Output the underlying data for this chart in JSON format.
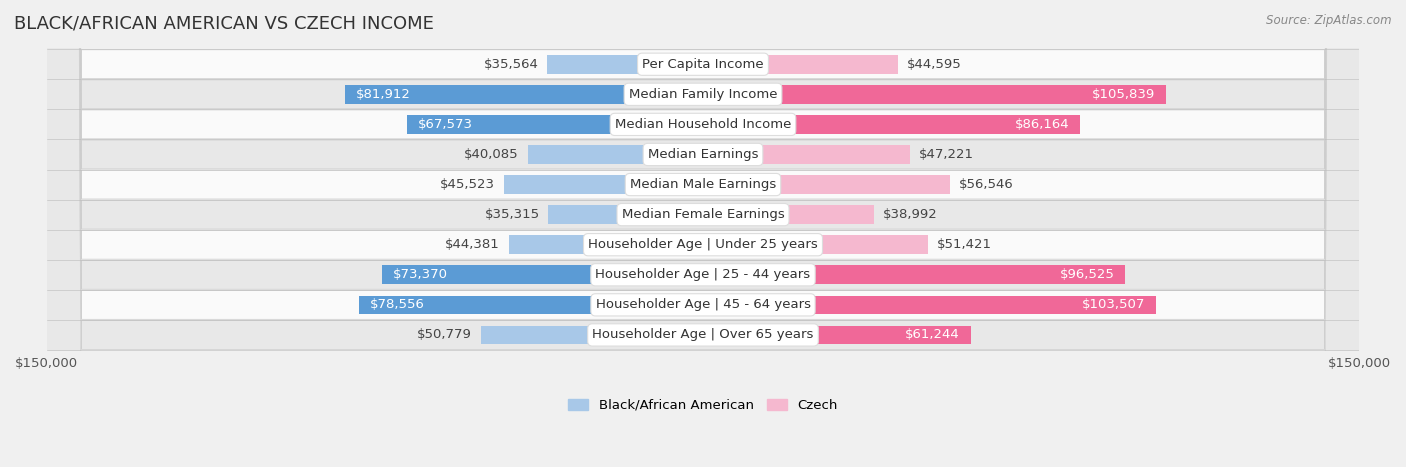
{
  "title": "BLACK/AFRICAN AMERICAN VS CZECH INCOME",
  "source": "Source: ZipAtlas.com",
  "categories": [
    "Per Capita Income",
    "Median Family Income",
    "Median Household Income",
    "Median Earnings",
    "Median Male Earnings",
    "Median Female Earnings",
    "Householder Age | Under 25 years",
    "Householder Age | 25 - 44 years",
    "Householder Age | 45 - 64 years",
    "Householder Age | Over 65 years"
  ],
  "left_values": [
    35564,
    81912,
    67573,
    40085,
    45523,
    35315,
    44381,
    73370,
    78556,
    50779
  ],
  "right_values": [
    44595,
    105839,
    86164,
    47221,
    56546,
    38992,
    51421,
    96525,
    103507,
    61244
  ],
  "left_labels": [
    "$35,564",
    "$81,912",
    "$67,573",
    "$40,085",
    "$45,523",
    "$35,315",
    "$44,381",
    "$73,370",
    "$78,556",
    "$50,779"
  ],
  "right_labels": [
    "$44,595",
    "$105,839",
    "$86,164",
    "$47,221",
    "$56,546",
    "$38,992",
    "$51,421",
    "$96,525",
    "$103,507",
    "$61,244"
  ],
  "left_color_light": "#a8c8e8",
  "left_color_dark": "#5b9bd5",
  "right_color_light": "#f5b8cf",
  "right_color_dark": "#f06898",
  "max_value": 150000,
  "legend_left": "Black/African American",
  "legend_right": "Czech",
  "bar_height": 0.62,
  "bg_color": "#f0f0f0",
  "row_bg_light": "#fafafa",
  "row_bg_dark": "#e8e8e8",
  "title_fontsize": 13,
  "label_fontsize": 9.5,
  "axis_label_fontsize": 9.5,
  "large_threshold": 60000,
  "source_fontsize": 8.5
}
